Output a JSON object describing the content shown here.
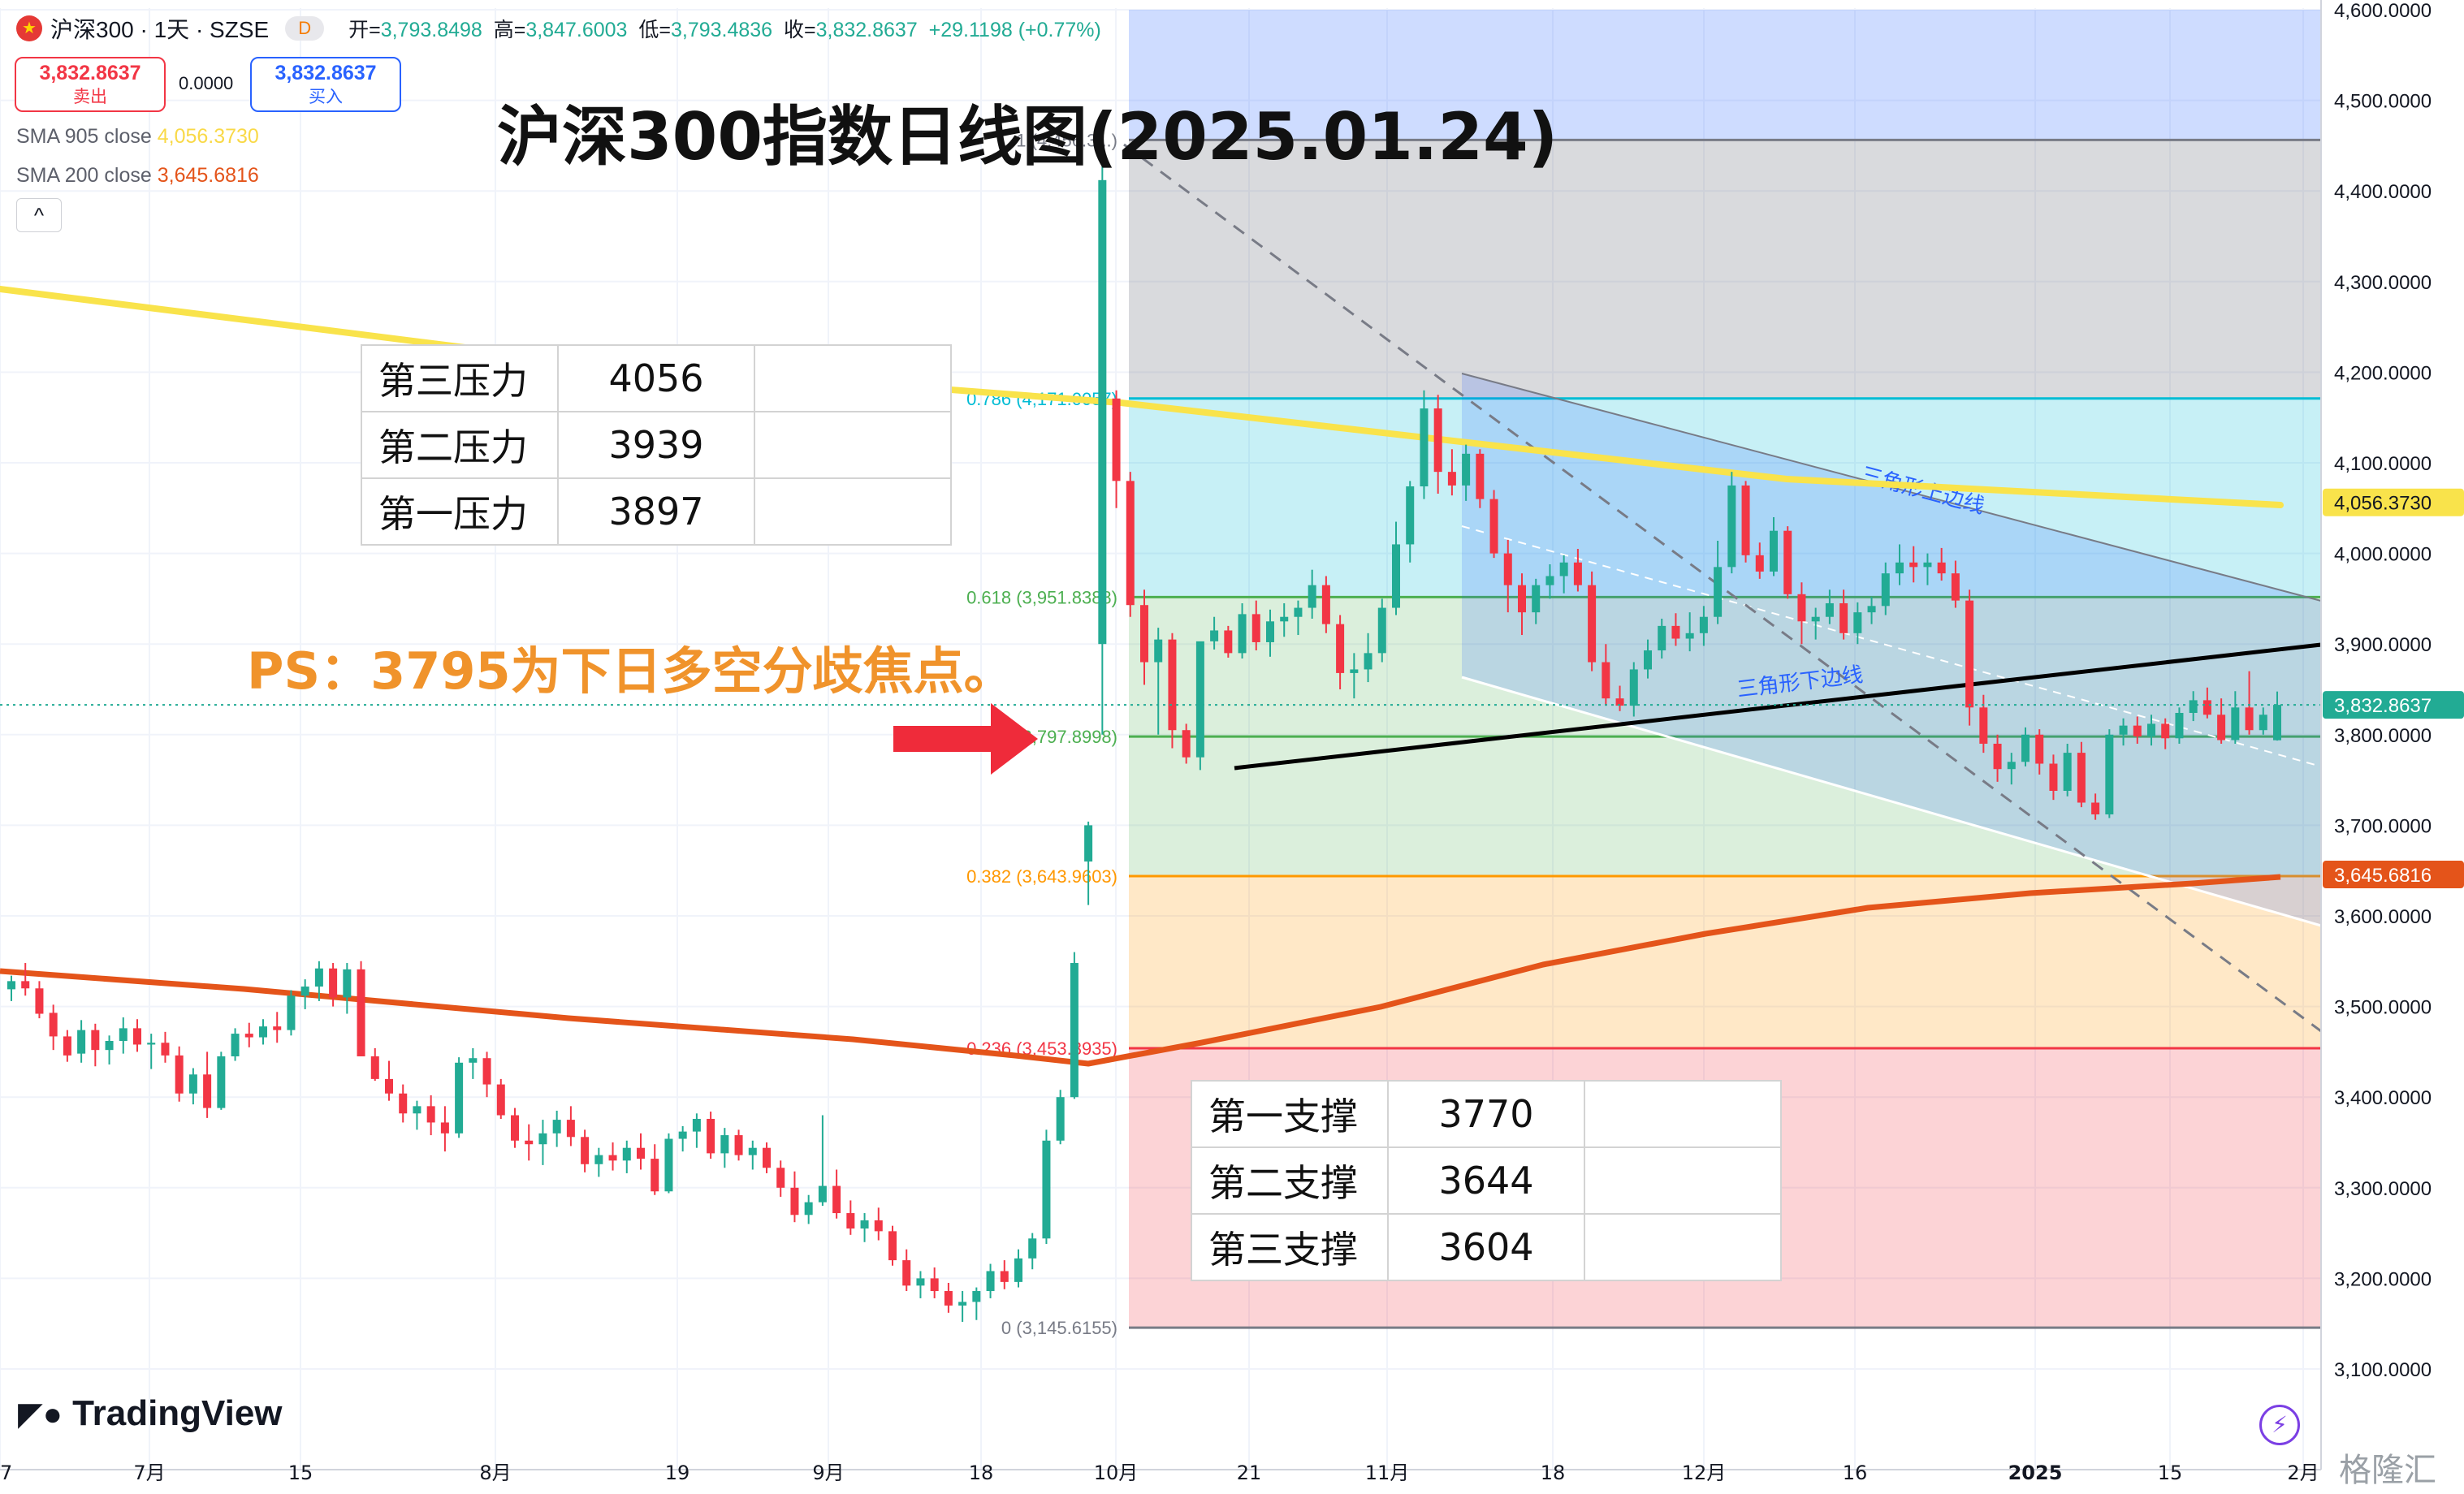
{
  "header": {
    "symbol": "沪深300 · 1天 · SZSE",
    "interval_badge": "D",
    "open_label": "开=",
    "open": "3,793.8498",
    "high_label": "高=",
    "high": "3,847.6003",
    "low_label": "低=",
    "low": "3,793.4836",
    "close_label": "收=",
    "close": "3,832.8637",
    "change": "+29.1198 (+0.77%)"
  },
  "trade": {
    "sell_price": "3,832.8637",
    "sell_label": "卖出",
    "spread": "0.0000",
    "buy_price": "3,832.8637",
    "buy_label": "买入"
  },
  "indicators": {
    "sma905_label": "SMA 905 close",
    "sma905_value": "4,056.3730",
    "sma200_label": "SMA 200 close",
    "sma200_value": "3,645.6816",
    "collapse_glyph": "^"
  },
  "annotations": {
    "title": "沪深300指数日线图(2025.01.24)",
    "ps_note": "PS：3795为下日多空分歧焦点。",
    "upper_line_label": "三角形上边线",
    "lower_line_label": "三角形下边线"
  },
  "resistance_table": [
    {
      "name": "第三压力",
      "value": "4056"
    },
    {
      "name": "第二压力",
      "value": "3939"
    },
    {
      "name": "第一压力",
      "value": "3897"
    }
  ],
  "support_table": [
    {
      "name": "第一支撑",
      "value": "3770"
    },
    {
      "name": "第二支撑",
      "value": "3644"
    },
    {
      "name": "第三支撑",
      "value": "3604"
    }
  ],
  "branding": {
    "logo": "TradingView",
    "watermark": "格隆汇"
  },
  "colors": {
    "up": "#22ab94",
    "down": "#f23645",
    "sma905": "#f9e34b",
    "sma200": "#e4541a",
    "fib_0": "#ffffff",
    "fib_0236": "#f23645",
    "fib_0382": "#ff9800",
    "fib_0618": "#4caf50",
    "fib_0786": "#00bcd4",
    "fib_1": "#787b86"
  },
  "chart_data": {
    "type": "candlestick",
    "y_axis_labels": [
      "4,600.0000",
      "4,500.0000",
      "4,400.0000",
      "4,300.0000",
      "4,200.0000",
      "4,100.0000",
      "4,000.0000",
      "3,900.0000",
      "3,800.0000",
      "3,700.0000",
      "3,600.0000",
      "3,500.0000",
      "3,400.0000",
      "3,300.0000",
      "3,200.0000",
      "3,100.0000"
    ],
    "ylim": [
      3040,
      4620
    ],
    "x_axis_labels": [
      "7",
      "7月",
      "15",
      "8月",
      "19",
      "9月",
      "18",
      "10月",
      "21",
      "11月",
      "18",
      "12月",
      "16",
      "2025",
      "15",
      "2月"
    ],
    "price_tags": [
      {
        "label": "4,056.3730",
        "value": 4056.373,
        "color": "#f9e34b"
      },
      {
        "label": "3,832.8637",
        "value": 3832.8637,
        "color": "#22ab94"
      },
      {
        "label": "3,645.6816",
        "value": 3645.6816,
        "color": "#e4541a"
      }
    ],
    "fibonacci": [
      {
        "ratio": "1",
        "label": "1 (4,456.3...)",
        "value": 4456.3
      },
      {
        "ratio": "0.786",
        "label": "0.786 (4,171.0057)",
        "value": 4171.0057
      },
      {
        "ratio": "0.618",
        "label": "0.618 (3,951.8388)",
        "value": 3951.8388
      },
      {
        "ratio": "0.5",
        "label": "0.5 (3,797.8998)",
        "value": 3797.8998
      },
      {
        "ratio": "0.382",
        "label": "0.382 (3,643.9603)",
        "value": 3643.9603
      },
      {
        "ratio": "0.236",
        "label": "0.236 (3,453.8935)",
        "value": 3453.8935
      },
      {
        "ratio": "0",
        "label": "0 (3,145.6155)",
        "value": 3145.6155
      }
    ],
    "candles": [
      [
        3519,
        3534,
        3506,
        3528
      ],
      [
        3528,
        3548,
        3512,
        3520
      ],
      [
        3520,
        3528,
        3487,
        3492
      ],
      [
        3493,
        3502,
        3452,
        3467
      ],
      [
        3467,
        3474,
        3439,
        3446
      ],
      [
        3448,
        3485,
        3438,
        3474
      ],
      [
        3474,
        3481,
        3434,
        3452
      ],
      [
        3452,
        3468,
        3436,
        3462
      ],
      [
        3462,
        3488,
        3448,
        3476
      ],
      [
        3476,
        3486,
        3450,
        3458
      ],
      [
        3458,
        3470,
        3431,
        3460
      ],
      [
        3460,
        3472,
        3438,
        3446
      ],
      [
        3446,
        3456,
        3395,
        3404
      ],
      [
        3404,
        3432,
        3392,
        3425
      ],
      [
        3425,
        3450,
        3377,
        3388
      ],
      [
        3388,
        3450,
        3386,
        3445
      ],
      [
        3445,
        3476,
        3440,
        3470
      ],
      [
        3470,
        3482,
        3455,
        3466
      ],
      [
        3466,
        3486,
        3458,
        3478
      ],
      [
        3478,
        3494,
        3460,
        3474
      ],
      [
        3474,
        3518,
        3468,
        3512
      ],
      [
        3512,
        3530,
        3497,
        3522
      ],
      [
        3522,
        3550,
        3506,
        3542
      ],
      [
        3542,
        3548,
        3500,
        3510
      ],
      [
        3510,
        3548,
        3492,
        3541
      ],
      [
        3541,
        3550,
        3445,
        3445
      ],
      [
        3445,
        3454,
        3418,
        3420
      ],
      [
        3420,
        3440,
        3396,
        3404
      ],
      [
        3404,
        3414,
        3372,
        3382
      ],
      [
        3382,
        3396,
        3364,
        3390
      ],
      [
        3390,
        3402,
        3358,
        3372
      ],
      [
        3372,
        3390,
        3340,
        3360
      ],
      [
        3360,
        3444,
        3355,
        3438
      ],
      [
        3438,
        3454,
        3420,
        3443
      ],
      [
        3443,
        3450,
        3400,
        3414
      ],
      [
        3414,
        3420,
        3376,
        3380
      ],
      [
        3380,
        3388,
        3344,
        3352
      ],
      [
        3352,
        3370,
        3330,
        3348
      ],
      [
        3348,
        3375,
        3325,
        3360
      ],
      [
        3360,
        3385,
        3345,
        3375
      ],
      [
        3375,
        3390,
        3346,
        3356
      ],
      [
        3356,
        3364,
        3317,
        3326
      ],
      [
        3326,
        3344,
        3312,
        3336
      ],
      [
        3336,
        3350,
        3319,
        3330
      ],
      [
        3330,
        3352,
        3316,
        3344
      ],
      [
        3344,
        3360,
        3320,
        3332
      ],
      [
        3332,
        3348,
        3292,
        3296
      ],
      [
        3296,
        3360,
        3294,
        3354
      ],
      [
        3354,
        3368,
        3340,
        3362
      ],
      [
        3362,
        3382,
        3344,
        3376
      ],
      [
        3376,
        3384,
        3332,
        3338
      ],
      [
        3338,
        3366,
        3322,
        3358
      ],
      [
        3358,
        3364,
        3330,
        3336
      ],
      [
        3336,
        3352,
        3320,
        3344
      ],
      [
        3344,
        3350,
        3316,
        3322
      ],
      [
        3322,
        3330,
        3290,
        3300
      ],
      [
        3300,
        3318,
        3262,
        3270
      ],
      [
        3270,
        3292,
        3260,
        3284
      ],
      [
        3284,
        3380,
        3280,
        3302
      ],
      [
        3302,
        3320,
        3266,
        3272
      ],
      [
        3272,
        3286,
        3248,
        3255
      ],
      [
        3255,
        3272,
        3240,
        3264
      ],
      [
        3264,
        3278,
        3242,
        3252
      ],
      [
        3252,
        3258,
        3214,
        3220
      ],
      [
        3220,
        3232,
        3186,
        3192
      ],
      [
        3192,
        3208,
        3178,
        3200
      ],
      [
        3200,
        3212,
        3178,
        3186
      ],
      [
        3186,
        3195,
        3162,
        3170
      ],
      [
        3170,
        3186,
        3152,
        3174
      ],
      [
        3174,
        3190,
        3154,
        3186
      ],
      [
        3186,
        3216,
        3178,
        3208
      ],
      [
        3208,
        3220,
        3188,
        3196
      ],
      [
        3196,
        3232,
        3190,
        3222
      ],
      [
        3222,
        3250,
        3210,
        3244
      ],
      [
        3244,
        3364,
        3238,
        3352
      ],
      [
        3352,
        3408,
        3348,
        3400
      ],
      [
        3400,
        3560,
        3398,
        3548
      ],
      [
        3660,
        3704,
        3612,
        3700
      ],
      [
        3900,
        4456,
        3800,
        4412
      ],
      [
        4171,
        4180,
        4050,
        4080
      ],
      [
        4080,
        4090,
        3930,
        3943
      ],
      [
        3943,
        3960,
        3855,
        3880
      ],
      [
        3880,
        3918,
        3800,
        3905
      ],
      [
        3905,
        3912,
        3785,
        3805
      ],
      [
        3805,
        3812,
        3768,
        3775
      ],
      [
        3775,
        3902,
        3761,
        3903
      ],
      [
        3903,
        3930,
        3894,
        3915
      ],
      [
        3915,
        3920,
        3885,
        3890
      ],
      [
        3890,
        3945,
        3884,
        3933
      ],
      [
        3933,
        3948,
        3893,
        3902
      ],
      [
        3902,
        3938,
        3886,
        3925
      ],
      [
        3925,
        3945,
        3908,
        3930
      ],
      [
        3930,
        3948,
        3910,
        3940
      ],
      [
        3940,
        3982,
        3928,
        3965
      ],
      [
        3965,
        3975,
        3912,
        3922
      ],
      [
        3922,
        3932,
        3850,
        3868
      ],
      [
        3868,
        3890,
        3840,
        3872
      ],
      [
        3872,
        3912,
        3858,
        3890
      ],
      [
        3890,
        3950,
        3880,
        3940
      ],
      [
        3940,
        4035,
        3932,
        4010
      ],
      [
        4010,
        4080,
        3990,
        4074
      ],
      [
        4074,
        4180,
        4060,
        4160
      ],
      [
        4160,
        4175,
        4066,
        4090
      ],
      [
        4090,
        4115,
        4064,
        4075
      ],
      [
        4075,
        4120,
        4058,
        4110
      ],
      [
        4110,
        4115,
        4050,
        4060
      ],
      [
        4060,
        4070,
        3995,
        4000
      ],
      [
        4000,
        4015,
        3935,
        3965
      ],
      [
        3965,
        3978,
        3910,
        3935
      ],
      [
        3935,
        3972,
        3922,
        3965
      ],
      [
        3965,
        3988,
        3950,
        3975
      ],
      [
        3975,
        3998,
        3956,
        3990
      ],
      [
        3990,
        4005,
        3958,
        3965
      ],
      [
        3965,
        3980,
        3870,
        3880
      ],
      [
        3880,
        3900,
        3832,
        3840
      ],
      [
        3840,
        3854,
        3826,
        3832
      ],
      [
        3832,
        3880,
        3820,
        3872
      ],
      [
        3872,
        3905,
        3862,
        3893
      ],
      [
        3893,
        3928,
        3884,
        3920
      ],
      [
        3920,
        3934,
        3898,
        3906
      ],
      [
        3906,
        3935,
        3892,
        3912
      ],
      [
        3912,
        3942,
        3898,
        3930
      ],
      [
        3930,
        4014,
        3922,
        3985
      ],
      [
        3985,
        4090,
        3978,
        4075
      ],
      [
        4075,
        4080,
        3990,
        3998
      ],
      [
        3998,
        4012,
        3972,
        3980
      ],
      [
        3980,
        4040,
        3975,
        4025
      ],
      [
        4025,
        4030,
        3950,
        3955
      ],
      [
        3955,
        3968,
        3900,
        3925
      ],
      [
        3925,
        3940,
        3905,
        3930
      ],
      [
        3930,
        3960,
        3922,
        3945
      ],
      [
        3945,
        3960,
        3905,
        3912
      ],
      [
        3912,
        3946,
        3900,
        3935
      ],
      [
        3935,
        3952,
        3922,
        3942
      ],
      [
        3942,
        3990,
        3932,
        3978
      ],
      [
        3978,
        4010,
        3965,
        3990
      ],
      [
        3990,
        4008,
        3968,
        3985
      ],
      [
        3985,
        4000,
        3965,
        3990
      ],
      [
        3990,
        4006,
        3970,
        3978
      ],
      [
        3978,
        3992,
        3940,
        3948
      ],
      [
        3948,
        3960,
        3810,
        3830
      ],
      [
        3830,
        3844,
        3780,
        3790
      ],
      [
        3790,
        3800,
        3748,
        3762
      ],
      [
        3762,
        3780,
        3745,
        3770
      ],
      [
        3770,
        3808,
        3765,
        3800
      ],
      [
        3800,
        3806,
        3756,
        3768
      ],
      [
        3768,
        3778,
        3728,
        3738
      ],
      [
        3738,
        3790,
        3732,
        3780
      ],
      [
        3780,
        3792,
        3720,
        3725
      ],
      [
        3725,
        3735,
        3706,
        3712
      ],
      [
        3712,
        3806,
        3708,
        3800
      ],
      [
        3800,
        3818,
        3788,
        3810
      ],
      [
        3810,
        3820,
        3790,
        3798
      ],
      [
        3798,
        3822,
        3788,
        3812
      ],
      [
        3812,
        3818,
        3784,
        3796
      ],
      [
        3796,
        3830,
        3790,
        3824
      ],
      [
        3824,
        3848,
        3815,
        3838
      ],
      [
        3838,
        3852,
        3818,
        3822
      ],
      [
        3822,
        3840,
        3790,
        3794
      ],
      [
        3794,
        3848,
        3790,
        3830
      ],
      [
        3830,
        3870,
        3800,
        3805
      ],
      [
        3805,
        3830,
        3800,
        3822
      ],
      [
        3793.85,
        3847.6,
        3793.48,
        3832.86
      ]
    ]
  }
}
